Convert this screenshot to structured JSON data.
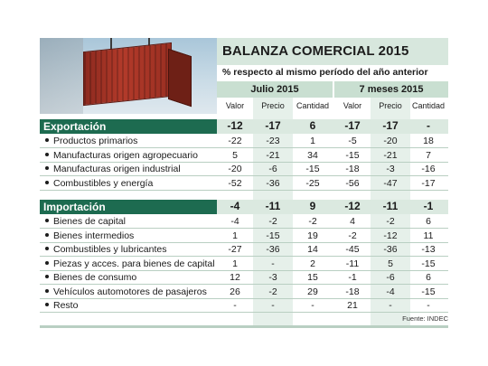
{
  "title": "BALANZA COMERCIAL 2015",
  "subtitle": "% respecto al mismo período del año anterior",
  "groups": [
    "Julio 2015",
    "7 meses 2015"
  ],
  "columns": [
    "Valor",
    "Precio",
    "Cantidad",
    "Valor",
    "Precio",
    "Cantidad"
  ],
  "source": "Fuente: INDEC",
  "sections": [
    {
      "name": "Exportación",
      "totals": [
        "-12",
        "-17",
        "6",
        "-17",
        "-17",
        "-"
      ],
      "rows": [
        {
          "label": "Productos primarios",
          "values": [
            "-22",
            "-23",
            "1",
            "-5",
            "-20",
            "18"
          ]
        },
        {
          "label": "Manufacturas origen agropecuario",
          "values": [
            "5",
            "-21",
            "34",
            "-15",
            "-21",
            "7"
          ]
        },
        {
          "label": "Manufacturas origen industrial",
          "values": [
            "-20",
            "-6",
            "-15",
            "-18",
            "-3",
            "-16"
          ]
        },
        {
          "label": "Combustibles y energía",
          "values": [
            "-52",
            "-36",
            "-25",
            "-56",
            "-47",
            "-17"
          ]
        }
      ]
    },
    {
      "name": "Importación",
      "totals": [
        "-4",
        "-11",
        "9",
        "-12",
        "-11",
        "-1"
      ],
      "rows": [
        {
          "label": "Bienes de capital",
          "values": [
            "-4",
            "-2",
            "-2",
            "4",
            "-2",
            "6"
          ]
        },
        {
          "label": "Bienes intermedios",
          "values": [
            "1",
            "-15",
            "19",
            "-2",
            "-12",
            "11"
          ]
        },
        {
          "label": "Combustibles y lubricantes",
          "values": [
            "-27",
            "-36",
            "14",
            "-45",
            "-36",
            "-13"
          ]
        },
        {
          "label": "Piezas y acces. para bienes de capital",
          "values": [
            "1",
            "-",
            "2",
            "-11",
            "5",
            "-15"
          ]
        },
        {
          "label": "Bienes de consumo",
          "values": [
            "12",
            "-3",
            "15",
            "-1",
            "-6",
            "6"
          ]
        },
        {
          "label": "Vehículos automotores de pasajeros",
          "values": [
            "26",
            "-2",
            "29",
            "-18",
            "-4",
            "-15"
          ]
        },
        {
          "label": "Resto",
          "values": [
            "-",
            "-",
            "-",
            "21",
            "-",
            "-"
          ]
        }
      ]
    }
  ]
}
